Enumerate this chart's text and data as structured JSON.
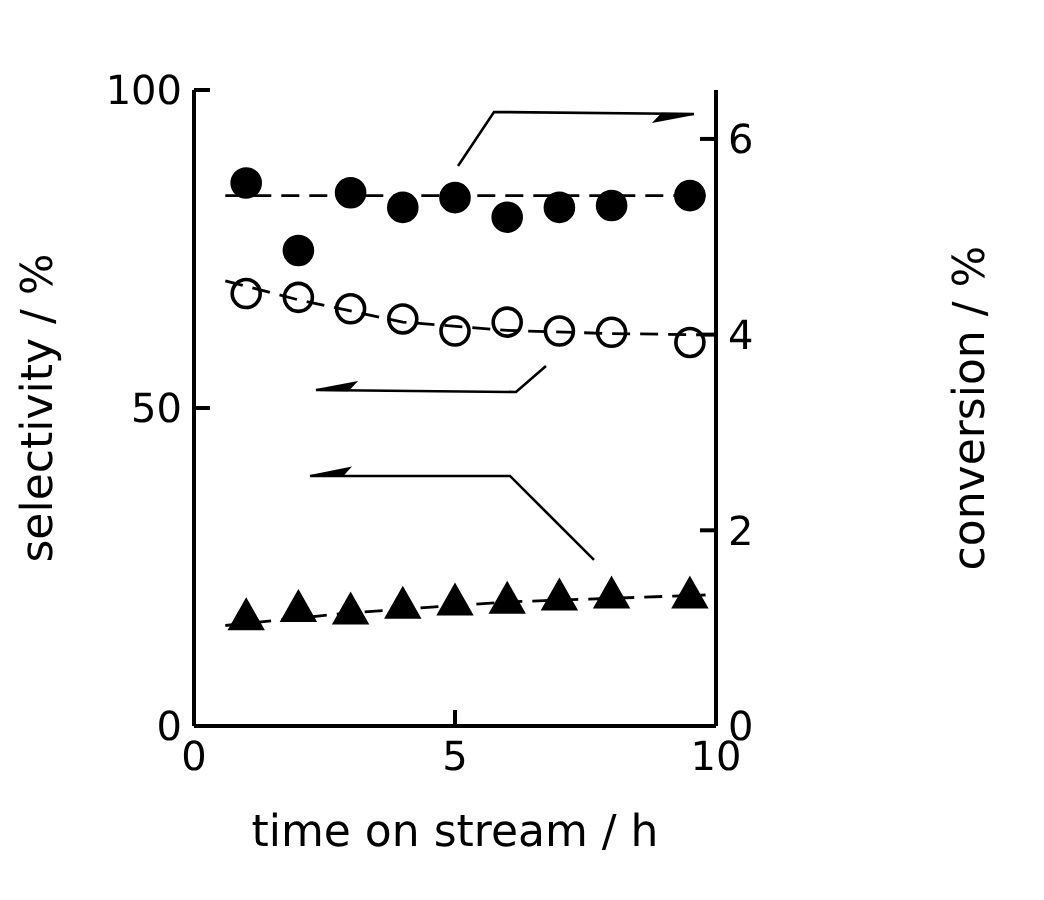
{
  "chart_data": {
    "type": "scatter",
    "xlabel": "time on stream / h",
    "ylabel": "selectivity / %",
    "y2label": "conversion / %",
    "xlim": [
      0,
      10
    ],
    "xticks": [
      0,
      5,
      10
    ],
    "ylim": [
      0,
      100
    ],
    "yticks": [
      0,
      50,
      100
    ],
    "y2lim": [
      0,
      6.5
    ],
    "y2ticks": [
      0,
      2,
      4,
      6
    ],
    "series": [
      {
        "axis": "y2",
        "color": "#000000",
        "marker": "circle",
        "x": [
          1,
          2,
          3,
          4,
          5,
          6,
          7,
          8,
          9.5
        ],
        "values": [
          5.55,
          4.86,
          5.45,
          5.3,
          5.4,
          5.2,
          5.3,
          5.32,
          5.42
        ]
      },
      {
        "color": "#ffffff",
        "marker": "circle",
        "x": [
          1,
          2,
          3,
          4,
          5,
          6,
          7,
          8,
          9.5
        ],
        "values": [
          68,
          67.4,
          65.6,
          64,
          62.1,
          63.5,
          62.1,
          61.9,
          60.3
        ]
      },
      {
        "color": "#000000",
        "marker": "triangle",
        "x": [
          1,
          2,
          3,
          4,
          5,
          6,
          7,
          8,
          9.5
        ],
        "values": [
          17.1,
          18.4,
          18,
          18.9,
          19.4,
          19.7,
          20.2,
          20.5,
          20.5
        ]
      },
      {
        "type": "line",
        "axis": "y2",
        "color": "#000000",
        "marker": "none",
        "line_style": "dashed",
        "x": [
          0.6,
          9.8
        ],
        "values": [
          5.42,
          5.42
        ]
      },
      {
        "type": "line",
        "color": "#000000",
        "marker": "none",
        "line_style": "dashed",
        "x": [
          0.6,
          2,
          4,
          6,
          8,
          9.8
        ],
        "values": [
          70,
          67,
          63.5,
          62.2,
          61.7,
          61.5
        ]
      },
      {
        "type": "line",
        "color": "#000000",
        "marker": "none",
        "line_style": "dashed",
        "x": [
          0.6,
          3,
          6,
          9.8
        ],
        "values": [
          15.8,
          17.8,
          19.5,
          20.6
        ]
      }
    ]
  }
}
